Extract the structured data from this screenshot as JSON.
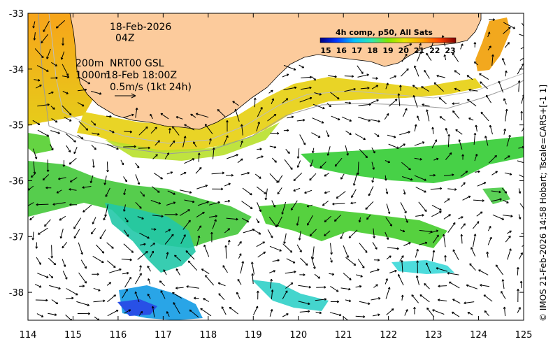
{
  "map": {
    "date_line": "18-Feb-2026",
    "time_line": "04Z",
    "isobath_200": "200m",
    "isobath_1000": "1000m",
    "nrt_label": "NRT00 GSL",
    "nrt_time": "18-Feb 18:00Z",
    "scale_label": "0.5m/s (1kt 24h)",
    "credit": "© IMOS 21-Feb-2026 14:58 Hobart; Tscale=CARS+[-1 1]",
    "x_ticks": [
      "114",
      "115",
      "116",
      "117",
      "118",
      "119",
      "120",
      "121",
      "122",
      "123",
      "124",
      "125"
    ],
    "y_ticks": [
      "-33",
      "-34",
      "-35",
      "-36",
      "-37",
      "-38"
    ]
  },
  "colorbar": {
    "title": "4h comp, p50, All Sats",
    "labels": [
      "15",
      "16",
      "17",
      "18",
      "19",
      "20",
      "21",
      "22",
      "23"
    ]
  },
  "colors": {
    "land": "#fccb9c",
    "frame": "#000000"
  }
}
